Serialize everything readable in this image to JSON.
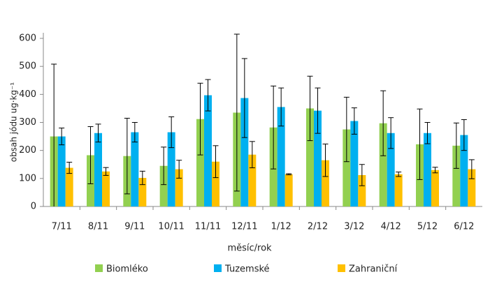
{
  "chart_data": {
    "type": "bar",
    "x_label": "měsíc/rok",
    "y_label": "obsah jódu ug·kg⁻¹",
    "categories": [
      "7/11",
      "8/11",
      "9/11",
      "10/11",
      "11/11",
      "12/11",
      "1/12",
      "2/12",
      "3/12",
      "4/12",
      "5/12",
      "6/12"
    ],
    "series": [
      {
        "name": "Biomléko",
        "color": "#92d050",
        "values": [
          250,
          183,
          180,
          145,
          312,
          335,
          282,
          350,
          275,
          297,
          222,
          217
        ],
        "errors": [
          258,
          102,
          135,
          67,
          128,
          280,
          148,
          115,
          115,
          116,
          126,
          81
        ]
      },
      {
        "name": "Tuzemské",
        "color": "#00b0f0",
        "values": [
          250,
          262,
          265,
          265,
          397,
          387,
          355,
          342,
          305,
          262,
          262,
          255
        ],
        "errors": [
          30,
          32,
          35,
          55,
          56,
          141,
          68,
          81,
          47,
          55,
          38,
          55
        ]
      },
      {
        "name": "Zahraniční",
        "color": "#ffc000",
        "values": [
          138,
          125,
          102,
          133,
          160,
          185,
          115,
          165,
          112,
          115,
          130,
          133
        ],
        "errors": [
          20,
          14,
          24,
          32,
          57,
          47,
          2,
          58,
          38,
          8,
          10,
          34
        ]
      }
    ],
    "ylim": [
      0,
      600
    ],
    "yticks": [
      0,
      100,
      200,
      300,
      400,
      500,
      600
    ]
  }
}
